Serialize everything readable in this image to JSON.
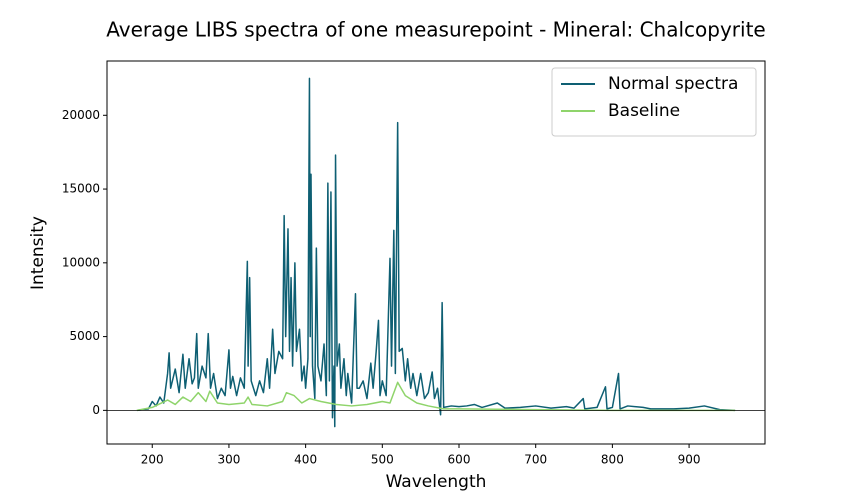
{
  "chart_data": {
    "type": "line",
    "title": "Average LIBS spectra of one measurepoint - Mineral: Chalcopyrite",
    "x_label": "Wavelength",
    "y_label": "Intensity",
    "xlim": [
      141,
      999
    ],
    "ylim": [
      -2280,
      23680
    ],
    "xticks": [
      200,
      300,
      400,
      500,
      600,
      700,
      800,
      900
    ],
    "yticks": [
      0,
      5000,
      10000,
      15000,
      20000
    ],
    "hline": 0,
    "legend": "upper right",
    "grid": false,
    "series": [
      {
        "name": "Normal spectra",
        "color": "#0e5f73",
        "x": [
          180,
          195,
          200,
          205,
          210,
          215,
          220,
          222,
          224,
          230,
          235,
          240,
          243,
          248,
          252,
          255,
          258,
          260,
          265,
          270,
          273,
          276,
          280,
          285,
          290,
          295,
          300,
          302,
          305,
          310,
          315,
          320,
          324,
          325,
          327,
          329,
          335,
          340,
          345,
          350,
          353,
          357,
          360,
          365,
          370,
          372,
          374,
          377,
          379,
          381,
          383,
          386,
          388,
          392,
          395,
          398,
          400,
          403,
          405,
          406,
          407,
          409,
          412,
          414,
          416,
          420,
          424,
          427,
          429,
          431,
          433,
          435,
          437,
          438,
          439,
          441,
          444,
          446,
          450,
          453,
          455,
          460,
          465,
          467,
          470,
          475,
          480,
          485,
          488,
          492,
          495,
          497,
          500,
          505,
          510,
          512,
          515,
          517,
          520,
          522,
          526,
          530,
          533,
          537,
          540,
          545,
          550,
          555,
          560,
          565,
          568,
          572,
          576,
          578,
          580,
          590,
          600,
          610,
          620,
          630,
          650,
          660,
          680,
          700,
          720,
          740,
          750,
          762,
          764,
          780,
          791,
          793,
          800,
          808,
          810,
          820,
          840,
          850,
          880,
          900,
          920,
          940,
          960
        ],
        "values": [
          0,
          100,
          600,
          300,
          900,
          500,
          2500,
          3900,
          1500,
          2800,
          1200,
          3800,
          1500,
          3500,
          1800,
          2200,
          5200,
          1500,
          3000,
          2200,
          5200,
          1500,
          2500,
          800,
          1500,
          1000,
          4100,
          1500,
          2300,
          1000,
          2200,
          1500,
          10100,
          3000,
          9000,
          2000,
          1000,
          2000,
          1200,
          3500,
          1500,
          5500,
          2500,
          4000,
          3500,
          13200,
          5000,
          12300,
          4000,
          9000,
          3000,
          10000,
          4000,
          5500,
          2000,
          3000,
          1500,
          3500,
          22500,
          5000,
          16000,
          3000,
          800,
          11000,
          3000,
          2000,
          4500,
          1000,
          15400,
          2000,
          14800,
          -500,
          3000,
          -1100,
          17300,
          3000,
          4500,
          1500,
          3500,
          1000,
          2500,
          500,
          7900,
          1500,
          1500,
          2000,
          800,
          3200,
          1500,
          4000,
          6100,
          1000,
          2000,
          1000,
          10300,
          3000,
          12200,
          2500,
          19500,
          4000,
          4200,
          2000,
          3500,
          1500,
          2500,
          1000,
          2500,
          800,
          1200,
          2600,
          800,
          1500,
          -300,
          7300,
          200,
          300,
          250,
          300,
          400,
          200,
          500,
          150,
          200,
          300,
          150,
          250,
          150,
          800,
          100,
          200,
          1600,
          100,
          200,
          2500,
          100,
          300,
          200,
          100,
          100,
          150,
          300,
          50,
          0
        ]
      },
      {
        "name": "Baseline",
        "color": "#8fd46b",
        "x": [
          180,
          200,
          220,
          230,
          240,
          250,
          260,
          270,
          275,
          285,
          300,
          320,
          325,
          330,
          350,
          370,
          375,
          385,
          395,
          405,
          420,
          440,
          460,
          480,
          500,
          510,
          520,
          530,
          545,
          560,
          580,
          600,
          700,
          800,
          900,
          960
        ],
        "values": [
          0,
          200,
          700,
          400,
          900,
          600,
          1200,
          600,
          1300,
          500,
          400,
          500,
          900,
          400,
          300,
          600,
          1200,
          1000,
          500,
          800,
          600,
          400,
          300,
          400,
          600,
          500,
          1900,
          1000,
          500,
          300,
          100,
          100,
          50,
          0,
          0,
          0
        ]
      }
    ]
  }
}
